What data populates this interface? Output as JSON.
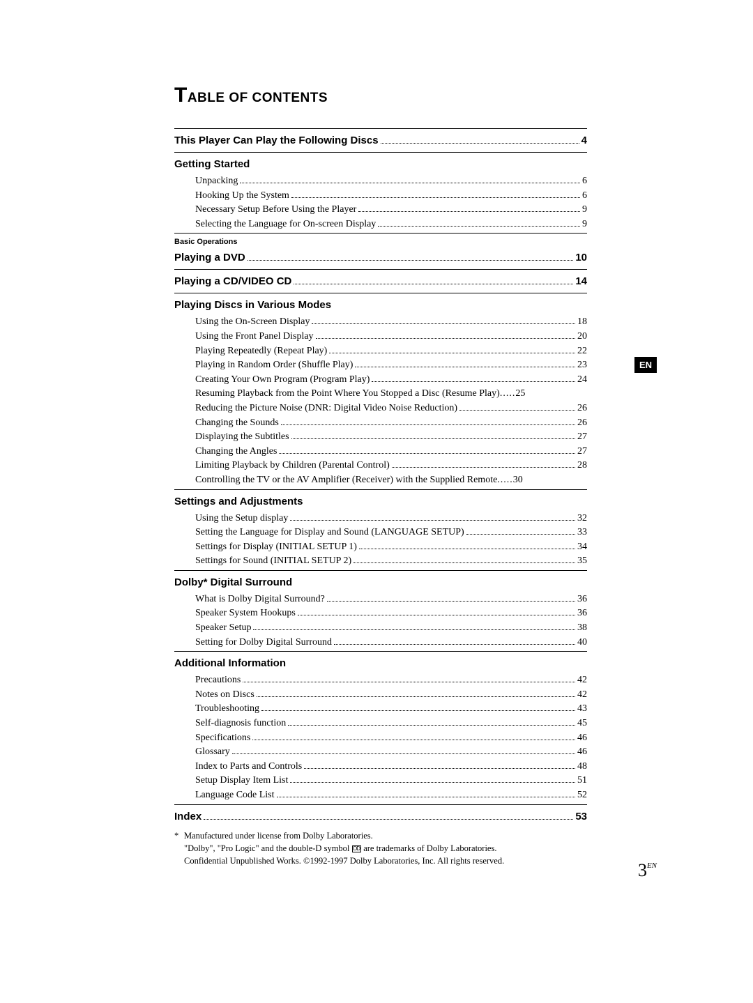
{
  "title_big_char": "T",
  "title_rest": "ABLE OF CONTENTS",
  "side_tab": "EN",
  "sections": {
    "top_bold": {
      "label": "This Player Can Play the Following Discs",
      "page": "4"
    },
    "getting_started": {
      "heading": "Getting Started",
      "items": [
        {
          "label": "Unpacking",
          "page": "6"
        },
        {
          "label": "Hooking Up the System",
          "page": "6"
        },
        {
          "label": "Necessary Setup Before Using the Player",
          "page": "9"
        },
        {
          "label": "Selecting the Language for On-screen Display",
          "page": "9"
        }
      ]
    },
    "basic_ops_label": "Basic Operations",
    "playing_dvd": {
      "label": "Playing a DVD",
      "page": "10"
    },
    "playing_cd": {
      "label": "Playing a CD/VIDEO CD",
      "page": "14"
    },
    "various_modes": {
      "heading": "Playing Discs in Various Modes",
      "items": [
        {
          "label": "Using the On-Screen Display",
          "page": "18"
        },
        {
          "label": "Using the Front Panel Display",
          "page": "20"
        },
        {
          "label": "Playing Repeatedly (Repeat Play)",
          "page": "22"
        },
        {
          "label": "Playing in Random Order (Shuffle Play)",
          "page": "23"
        },
        {
          "label": "Creating Your Own Program (Program Play)",
          "page": "24"
        },
        {
          "label": "Resuming Playback from the Point Where You Stopped a Disc (Resume Play)",
          "page": "25",
          "nodots": true
        },
        {
          "label": "Reducing the Picture Noise (DNR: Digital Video Noise Reduction)",
          "page": "26"
        },
        {
          "label": "Changing the Sounds",
          "page": "26"
        },
        {
          "label": "Displaying the Subtitles",
          "page": "27"
        },
        {
          "label": "Changing the Angles",
          "page": "27"
        },
        {
          "label": "Limiting Playback by Children (Parental Control)",
          "page": "28"
        },
        {
          "label": "Controlling the TV or the AV Amplifier (Receiver) with the Supplied Remote",
          "page": "30",
          "nodots": true
        }
      ]
    },
    "settings": {
      "heading": "Settings and Adjustments",
      "items": [
        {
          "label": "Using the Setup display",
          "page": "32"
        },
        {
          "label": "Setting the Language for Display and Sound (LANGUAGE SETUP)",
          "page": "33"
        },
        {
          "label": "Settings for Display (INITIAL SETUP 1)",
          "page": "34"
        },
        {
          "label": "Settings for Sound (INITIAL SETUP 2)",
          "page": "35"
        }
      ]
    },
    "dolby": {
      "heading": "Dolby*  Digital Surround",
      "items": [
        {
          "label": "What is Dolby Digital Surround?",
          "page": "36"
        },
        {
          "label": "Speaker System Hookups",
          "page": "36"
        },
        {
          "label": "Speaker Setup",
          "page": "38"
        },
        {
          "label": "Setting for Dolby Digital Surround",
          "page": "40"
        }
      ]
    },
    "additional": {
      "heading": "Additional Information",
      "items": [
        {
          "label": "Precautions",
          "page": "42"
        },
        {
          "label": "Notes on Discs",
          "page": "42"
        },
        {
          "label": "Troubleshooting",
          "page": "43"
        },
        {
          "label": "Self-diagnosis function",
          "page": "45"
        },
        {
          "label": "Specifications",
          "page": "46"
        },
        {
          "label": "Glossary",
          "page": "46"
        },
        {
          "label": "Index to Parts and Controls",
          "page": "48"
        },
        {
          "label": "Setup Display Item List",
          "page": "51"
        },
        {
          "label": "Language Code List",
          "page": "52"
        }
      ]
    },
    "index": {
      "label": "Index",
      "page": "53"
    }
  },
  "footnote": {
    "asterisk": "*",
    "line1": "Manufactured under license from Dolby Laboratories.",
    "line2a": "\"Dolby\", \"Pro Logic\" and the double-D symbol ",
    "line2b": " are trademarks of Dolby Laboratories.",
    "line3": "Confidential Unpublished Works.  ©1992-1997 Dolby Laboratories, Inc.  All rights reserved."
  },
  "page_number": {
    "num": "3",
    "sup": "EN"
  },
  "colors": {
    "text": "#000000",
    "background": "#ffffff",
    "tab_bg": "#000000",
    "tab_fg": "#ffffff"
  }
}
